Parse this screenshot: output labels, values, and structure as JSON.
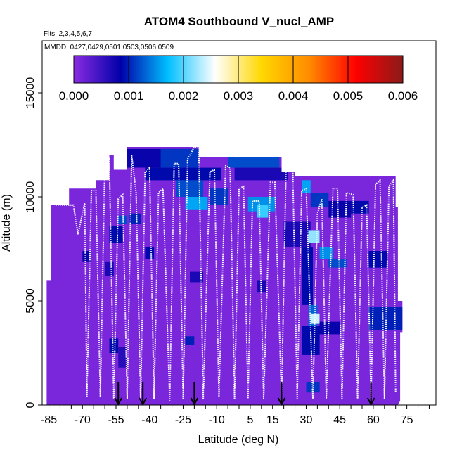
{
  "chart_data": {
    "type": "heatmap",
    "title": "ATOM4 Southbound V_nucl_AMP",
    "flights_note": "Flts: 2,3,4,5,6,7",
    "dates_note": "MMDD: 0427,0429,0501,0503,0506,0509",
    "xlabel": "Latitude (deg N)",
    "ylabel": "Altitude (m)",
    "xlim": [
      -88,
      88
    ],
    "ylim": [
      0,
      17500
    ],
    "x_ticks": [
      -85,
      -70,
      -55,
      -40,
      -25,
      -10,
      5,
      15,
      30,
      45,
      60,
      75
    ],
    "x_tick_labels": [
      "-85",
      "-70",
      "-55",
      "-40",
      "-25",
      "-10",
      "5",
      "15",
      "30",
      "45",
      "60",
      "75"
    ],
    "x_minor_step": 5,
    "y_ticks": [
      0,
      5000,
      10000,
      15000
    ],
    "y_tick_labels": [
      "0",
      "5000",
      "10000",
      "15000"
    ],
    "colorbar": {
      "min": 0.0,
      "max": 0.006,
      "tick_labels": [
        "0.000",
        "0.001",
        "0.002",
        "0.003",
        "0.004",
        "0.005",
        "0.006"
      ],
      "stops": [
        "#8a2be2",
        "#0000a8",
        "#00bfff",
        "#ffffff",
        "#ffd700",
        "#ff8c00",
        "#ff0000",
        "#8b1a1a"
      ]
    },
    "domain_envelope": [
      [
        -86,
        0
      ],
      [
        -86,
        6000
      ],
      [
        -84,
        6000
      ],
      [
        -84,
        9600
      ],
      [
        -76,
        9600
      ],
      [
        -76,
        10400
      ],
      [
        -64,
        10400
      ],
      [
        -64,
        10800
      ],
      [
        -58,
        10800
      ],
      [
        -58,
        12000
      ],
      [
        -56,
        12000
      ],
      [
        -56,
        11300
      ],
      [
        -50,
        11300
      ],
      [
        -50,
        12400
      ],
      [
        -18,
        12400
      ],
      [
        -18,
        11900
      ],
      [
        19,
        11900
      ],
      [
        19,
        11200
      ],
      [
        25,
        11200
      ],
      [
        25,
        11000
      ],
      [
        70,
        11000
      ],
      [
        70,
        9500
      ],
      [
        71,
        9500
      ],
      [
        71,
        5000
      ],
      [
        73,
        5000
      ],
      [
        73,
        3500
      ],
      [
        72,
        3500
      ],
      [
        72,
        200
      ],
      [
        71,
        0
      ]
    ],
    "default_value": 0.0001,
    "anomaly_cells": [
      {
        "lat0": -50,
        "lat1": -18,
        "alt0": 11400,
        "alt1": 12300,
        "v": 0.0008
      },
      {
        "lat0": -35,
        "lat1": -18,
        "alt0": 11400,
        "alt1": 12300,
        "v": 0.0011
      },
      {
        "lat0": -5,
        "lat1": 18,
        "alt0": 11400,
        "alt1": 11900,
        "v": 0.0012
      },
      {
        "lat0": -42,
        "lat1": -8,
        "alt0": 10800,
        "alt1": 11400,
        "v": 0.0009
      },
      {
        "lat0": -2,
        "lat1": 22,
        "alt0": 10800,
        "alt1": 11400,
        "v": 0.0007
      },
      {
        "lat0": -28,
        "lat1": -16,
        "alt0": 10000,
        "alt1": 10800,
        "v": 0.0012
      },
      {
        "lat0": -24,
        "lat1": -14,
        "alt0": 9400,
        "alt1": 10000,
        "v": 0.0016
      },
      {
        "lat0": -13,
        "lat1": -5,
        "alt0": 9600,
        "alt1": 10400,
        "v": 0.0011
      },
      {
        "lat0": 4,
        "lat1": 16,
        "alt0": 9300,
        "alt1": 10000,
        "v": 0.0015
      },
      {
        "lat0": 8,
        "lat1": 13,
        "alt0": 9000,
        "alt1": 9600,
        "v": 0.0019
      },
      {
        "lat0": 28,
        "lat1": 32,
        "alt0": 10200,
        "alt1": 10800,
        "v": 0.0016
      },
      {
        "lat0": 32,
        "lat1": 40,
        "alt0": 9500,
        "alt1": 10200,
        "v": 0.0011
      },
      {
        "lat0": 40,
        "lat1": 50,
        "alt0": 9000,
        "alt1": 9800,
        "v": 0.0008
      },
      {
        "lat0": 50,
        "lat1": 58,
        "alt0": 9200,
        "alt1": 9800,
        "v": 0.0009
      },
      {
        "lat0": 20,
        "lat1": 32,
        "alt0": 7600,
        "alt1": 8800,
        "v": 0.0007
      },
      {
        "lat0": 31,
        "lat1": 36,
        "alt0": 7800,
        "alt1": 8400,
        "v": 0.0022
      },
      {
        "lat0": 36,
        "lat1": 42,
        "alt0": 7000,
        "alt1": 7600,
        "v": 0.0015
      },
      {
        "lat0": 40,
        "lat1": 48,
        "alt0": 6600,
        "alt1": 7000,
        "v": 0.0012
      },
      {
        "lat0": 28,
        "lat1": 33,
        "alt0": 4800,
        "alt1": 7600,
        "v": 0.0009
      },
      {
        "lat0": 31,
        "lat1": 35,
        "alt0": 3800,
        "alt1": 4800,
        "v": 0.0013
      },
      {
        "lat0": 32,
        "lat1": 36,
        "alt0": 3900,
        "alt1": 4400,
        "v": 0.0024
      },
      {
        "lat0": 28,
        "lat1": 36,
        "alt0": 2400,
        "alt1": 3800,
        "v": 0.0009
      },
      {
        "lat0": 36,
        "lat1": 45,
        "alt0": 3400,
        "alt1": 4000,
        "v": 0.0008
      },
      {
        "lat0": 58,
        "lat1": 74,
        "alt0": 3600,
        "alt1": 4700,
        "v": 0.001
      },
      {
        "lat0": 58,
        "lat1": 66,
        "alt0": 6600,
        "alt1": 7400,
        "v": 0.0009
      },
      {
        "lat0": 30,
        "lat1": 36,
        "alt0": 600,
        "alt1": 1100,
        "v": 0.0011
      },
      {
        "lat0": -58,
        "lat1": -52,
        "alt0": 7800,
        "alt1": 8600,
        "v": 0.0009
      },
      {
        "lat0": -54,
        "lat1": -50,
        "alt0": 8700,
        "alt1": 9100,
        "v": 0.0012
      },
      {
        "lat0": -49,
        "lat1": -44,
        "alt0": 8700,
        "alt1": 9200,
        "v": 0.001
      },
      {
        "lat0": -70,
        "lat1": -66,
        "alt0": 6900,
        "alt1": 7400,
        "v": 0.0008
      },
      {
        "lat0": -60,
        "lat1": -56,
        "alt0": 6200,
        "alt1": 6900,
        "v": 0.0007
      },
      {
        "lat0": -58,
        "lat1": -54,
        "alt0": 2500,
        "alt1": 3200,
        "v": 0.0009
      },
      {
        "lat0": -54,
        "lat1": -50,
        "alt0": 1800,
        "alt1": 2800,
        "v": 0.0006
      },
      {
        "lat0": -42,
        "lat1": -38,
        "alt0": 7000,
        "alt1": 7600,
        "v": 0.0009
      },
      {
        "lat0": -22,
        "lat1": -16,
        "alt0": 5900,
        "alt1": 6400,
        "v": 0.0007
      },
      {
        "lat0": -24,
        "lat1": -20,
        "alt0": 2900,
        "alt1": 3300,
        "v": 0.001
      },
      {
        "lat0": 8,
        "lat1": 12,
        "alt0": 5400,
        "alt1": 6000,
        "v": 0.0007
      }
    ],
    "flight_track": [
      [
        -82,
        9600
      ],
      [
        -74,
        9600
      ],
      [
        -72,
        8200
      ],
      [
        -69,
        9700
      ],
      [
        -68,
        400
      ],
      [
        -66,
        10300
      ],
      [
        -64,
        10300
      ],
      [
        -62,
        400
      ],
      [
        -60,
        11500
      ],
      [
        -58,
        11800
      ],
      [
        -56,
        300
      ],
      [
        -54,
        9900
      ],
      [
        -52,
        10100
      ],
      [
        -50,
        300
      ],
      [
        -48,
        12000
      ],
      [
        -46,
        10200
      ],
      [
        -44,
        300
      ],
      [
        -42,
        11200
      ],
      [
        -40,
        11400
      ],
      [
        -38,
        300
      ],
      [
        -36,
        10200
      ],
      [
        -34,
        10400
      ],
      [
        -31,
        200
      ],
      [
        -29,
        11600
      ],
      [
        -27,
        11600
      ],
      [
        -25,
        300
      ],
      [
        -23,
        11800
      ],
      [
        -20,
        12400
      ],
      [
        -18,
        12400
      ],
      [
        -16,
        300
      ],
      [
        -13,
        11200
      ],
      [
        -11,
        11300
      ],
      [
        -9,
        400
      ],
      [
        -6,
        11500
      ],
      [
        -4,
        11400
      ],
      [
        -2,
        300
      ],
      [
        0,
        10400
      ],
      [
        2,
        10500
      ],
      [
        4,
        300
      ],
      [
        6,
        9800
      ],
      [
        9,
        9800
      ],
      [
        11,
        300
      ],
      [
        14,
        10700
      ],
      [
        16,
        10700
      ],
      [
        19,
        300
      ],
      [
        21,
        11300
      ],
      [
        24,
        11300
      ],
      [
        26,
        300
      ],
      [
        28,
        10300
      ],
      [
        30,
        10400
      ],
      [
        33,
        300
      ],
      [
        35,
        9200
      ],
      [
        37,
        9900
      ],
      [
        39,
        300
      ],
      [
        42,
        10400
      ],
      [
        44,
        10400
      ],
      [
        46,
        300
      ],
      [
        48,
        10200
      ],
      [
        51,
        10100
      ],
      [
        53,
        300
      ],
      [
        55,
        9500
      ],
      [
        57,
        9600
      ],
      [
        59,
        300
      ],
      [
        61,
        10600
      ],
      [
        63,
        10800
      ],
      [
        65,
        300
      ],
      [
        67,
        10500
      ],
      [
        69,
        10800
      ],
      [
        70,
        600
      ]
    ],
    "arrow_lats": [
      -54,
      -43,
      -20,
      19,
      59
    ],
    "arrow_alts": [
      700,
      700,
      700,
      700,
      700
    ]
  }
}
